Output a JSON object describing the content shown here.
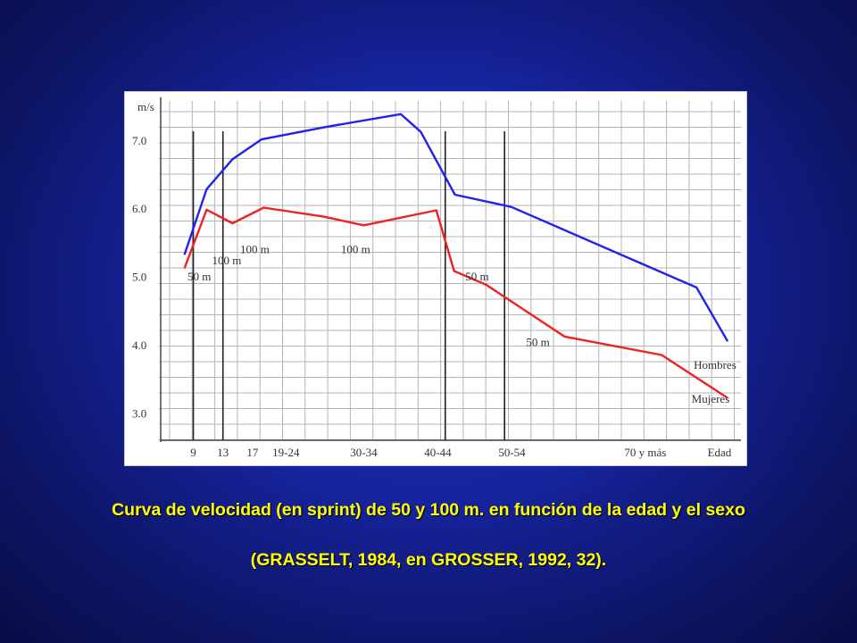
{
  "chart_data": {
    "type": "line",
    "ylabel": "m/s",
    "xlabel": "Edad",
    "x_ticks": [
      {
        "label": "9",
        "x": 9
      },
      {
        "label": "13",
        "x": 13
      },
      {
        "label": "17",
        "x": 17
      },
      {
        "label": "19-24",
        "x": 21.5
      },
      {
        "label": "30-34",
        "x": 32
      },
      {
        "label": "40-44",
        "x": 42
      },
      {
        "label": "50-54",
        "x": 52
      },
      {
        "label": "70  y más",
        "x": 70
      },
      {
        "label": "Edad",
        "x": 80
      }
    ],
    "y_ticks": [
      {
        "label": "7.0",
        "y": 7.0
      },
      {
        "label": "6.0",
        "y": 6.0
      },
      {
        "label": "5.0",
        "y": 5.0
      },
      {
        "label": "4.0",
        "y": 4.0
      },
      {
        "label": "3.0",
        "y": 3.0
      }
    ],
    "xlim": [
      4.6,
      82.9
    ],
    "ylim": [
      2.6,
      7.6
    ],
    "grid": true,
    "series": [
      {
        "name": "Hombres",
        "color": "#2222ee",
        "x": [
          7.8,
          10.8,
          14.3,
          18.2,
          26.8,
          37.0,
          39.7,
          44.3,
          51.9,
          76.9,
          81.1
        ],
        "y": [
          5.32,
          6.28,
          6.72,
          7.01,
          7.19,
          7.38,
          7.12,
          6.2,
          6.02,
          4.84,
          4.05
        ]
      },
      {
        "name": "Mujeres",
        "color": "#ee2222",
        "x": [
          7.8,
          10.8,
          14.3,
          18.5,
          26.5,
          32.0,
          41.8,
          44.2,
          48.5,
          59.1,
          72.2,
          81.1
        ],
        "y": [
          5.12,
          5.98,
          5.78,
          6.01,
          5.88,
          5.75,
          5.97,
          5.08,
          4.88,
          4.12,
          3.85,
          3.22
        ]
      }
    ],
    "vertical_markers": [
      9.0,
      13.0,
      43.0,
      51.0
    ],
    "annotations": [
      {
        "text": "50 m",
        "x": 9.8,
        "y": 4.94
      },
      {
        "text": "100 m",
        "x": 13.5,
        "y": 5.18
      },
      {
        "text": "100 m",
        "x": 17.3,
        "y": 5.34
      },
      {
        "text": "100 m",
        "x": 30.9,
        "y": 5.34
      },
      {
        "text": "50 m",
        "x": 47.3,
        "y": 4.94
      },
      {
        "text": "50 m",
        "x": 55.5,
        "y": 3.98
      },
      {
        "text": "Hombres",
        "x": 79.4,
        "y": 3.65
      },
      {
        "text": "Mujeres",
        "x": 78.8,
        "y": 3.15
      }
    ]
  },
  "caption": {
    "line1": "Curva de velocidad (en sprint) de 50 y 100 m. en función de la edad y el sexo",
    "line2": "(GRASSELT, 1984, en GROSSER, 1992, 32)."
  }
}
